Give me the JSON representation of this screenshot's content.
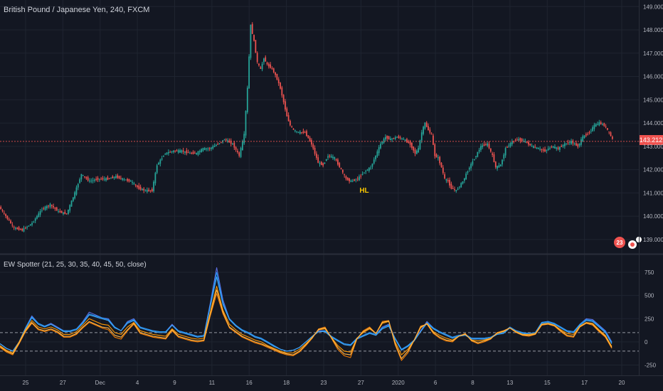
{
  "chart_title": "British Pound / Japanese Yen, 240, FXCM",
  "indicator_title": "EW Spotter (21, 25, 30, 35, 40, 45, 50, close)",
  "last_price_label": "143.212",
  "pattern_label": "HL",
  "event_badge": "23",
  "colors": {
    "background": "#131722",
    "grid": "#1f2430",
    "up_candle": "#26a69a",
    "down_candle": "#ef5350",
    "price_line": "#ef5350",
    "axis_text": "#b2b5be",
    "title_text": "#d1d4dc",
    "pattern_label": "#f7c600",
    "osc_blue_1": "#5b6ee1",
    "osc_blue_2": "#2196f3",
    "osc_blue_3": "#42a5f5",
    "osc_orange_1": "#ff9800",
    "osc_orange_2": "#f57c00",
    "osc_orange_3": "#ffb74d",
    "ref_lines": "#9598a1"
  },
  "chart_data": [
    {
      "type": "candlestick",
      "title": "British Pound / Japanese Yen, 240, FXCM",
      "x_tick_labels": [
        "25",
        "27",
        "Dec",
        "4",
        "9",
        "11",
        "16",
        "18",
        "23",
        "27",
        "2020",
        "6",
        "8",
        "13",
        "15",
        "17",
        "20"
      ],
      "y_tick_labels": [
        "139.000",
        "140.000",
        "141.000",
        "142.000",
        "143.000",
        "144.000",
        "145.000",
        "146.000",
        "147.000",
        "148.000",
        "149.000"
      ],
      "ylim": [
        138.6,
        149.1
      ],
      "last_price": 143.212,
      "annotations": [
        "HL"
      ],
      "grid": true,
      "path_points": [
        [
          0,
          140.4
        ],
        [
          4,
          140.0
        ],
        [
          9,
          139.5
        ],
        [
          14,
          139.4
        ],
        [
          20,
          139.7
        ],
        [
          26,
          140.3
        ],
        [
          31,
          140.5
        ],
        [
          36,
          140.2
        ],
        [
          41,
          140.1
        ],
        [
          46,
          141.0
        ],
        [
          50,
          141.8
        ],
        [
          55,
          141.5
        ],
        [
          60,
          141.6
        ],
        [
          66,
          141.6
        ],
        [
          71,
          141.7
        ],
        [
          75,
          141.6
        ],
        [
          80,
          141.5
        ],
        [
          85,
          141.2
        ],
        [
          89,
          141.1
        ],
        [
          93,
          141.1
        ],
        [
          96,
          142.2
        ],
        [
          101,
          142.7
        ],
        [
          106,
          142.8
        ],
        [
          111,
          142.8
        ],
        [
          116,
          142.7
        ],
        [
          120,
          142.7
        ],
        [
          124,
          142.9
        ],
        [
          128,
          142.9
        ],
        [
          133,
          143.1
        ],
        [
          137,
          143.3
        ],
        [
          142,
          143.1
        ],
        [
          146,
          142.6
        ],
        [
          149,
          143.5
        ],
        [
          151,
          145.5
        ],
        [
          153,
          148.2
        ],
        [
          155,
          147.5
        ],
        [
          157,
          146.6
        ],
        [
          159,
          146.3
        ],
        [
          161,
          146.8
        ],
        [
          163,
          146.5
        ],
        [
          165,
          146.4
        ],
        [
          167,
          146.2
        ],
        [
          169,
          145.9
        ],
        [
          171,
          145.5
        ],
        [
          173,
          144.9
        ],
        [
          175,
          144.3
        ],
        [
          177,
          143.9
        ],
        [
          179,
          143.7
        ],
        [
          182,
          143.6
        ],
        [
          186,
          143.6
        ],
        [
          190,
          143.1
        ],
        [
          194,
          142.3
        ],
        [
          197,
          142.2
        ],
        [
          200,
          142.6
        ],
        [
          204,
          142.5
        ],
        [
          208,
          142.0
        ],
        [
          211,
          141.6
        ],
        [
          214,
          141.5
        ],
        [
          218,
          141.6
        ],
        [
          222,
          141.9
        ],
        [
          226,
          142.1
        ],
        [
          229,
          142.6
        ],
        [
          232,
          143.1
        ],
        [
          235,
          143.4
        ],
        [
          238,
          143.3
        ],
        [
          242,
          143.4
        ],
        [
          246,
          143.3
        ],
        [
          250,
          143.1
        ],
        [
          253,
          142.7
        ],
        [
          255,
          142.9
        ],
        [
          257,
          143.6
        ],
        [
          259,
          144.0
        ],
        [
          261,
          143.7
        ],
        [
          263,
          143.5
        ],
        [
          265,
          142.6
        ],
        [
          267,
          142.5
        ],
        [
          269,
          142.1
        ],
        [
          271,
          141.6
        ],
        [
          273,
          141.5
        ],
        [
          275,
          141.2
        ],
        [
          278,
          141.1
        ],
        [
          282,
          141.5
        ],
        [
          286,
          142.1
        ],
        [
          290,
          142.6
        ],
        [
          293,
          143.0
        ],
        [
          297,
          143.1
        ],
        [
          300,
          142.6
        ],
        [
          302,
          142.1
        ],
        [
          305,
          142.2
        ],
        [
          308,
          142.9
        ],
        [
          312,
          143.2
        ],
        [
          316,
          143.3
        ],
        [
          320,
          143.2
        ],
        [
          324,
          143.0
        ],
        [
          328,
          142.9
        ],
        [
          332,
          142.8
        ],
        [
          336,
          143.0
        ],
        [
          340,
          142.9
        ],
        [
          344,
          143.1
        ],
        [
          348,
          143.2
        ],
        [
          352,
          143.0
        ],
        [
          355,
          143.4
        ],
        [
          359,
          143.6
        ],
        [
          362,
          143.9
        ],
        [
          365,
          144.0
        ],
        [
          368,
          143.9
        ],
        [
          371,
          143.6
        ],
        [
          373,
          143.3
        ]
      ]
    },
    {
      "type": "line",
      "title": "EW Spotter (21, 25, 30, 35, 40, 45, 50, close)",
      "y_tick_labels": [
        "-250",
        "0",
        "250",
        "500",
        "750"
      ],
      "ylim": [
        -300,
        850
      ],
      "reference_lines": [
        100,
        -100
      ],
      "series": [
        {
          "color": "#5b6ee1",
          "values": [
            -20,
            -70,
            -100,
            0,
            150,
            280,
            200,
            170,
            200,
            160,
            120,
            120,
            140,
            220,
            320,
            290,
            260,
            250,
            160,
            120,
            220,
            250,
            160,
            140,
            120,
            110,
            110,
            190,
            120,
            100,
            80,
            60,
            70,
            420,
            800,
            450,
            250,
            180,
            130,
            100,
            60,
            40,
            0,
            -40,
            -80,
            -100,
            -90,
            -60,
            0,
            60,
            120,
            120,
            60,
            20,
            -20,
            -30,
            40,
            70,
            100,
            80,
            160,
            190,
            40,
            -80,
            -40,
            20,
            120,
            220,
            150,
            110,
            80,
            50,
            70,
            80,
            40,
            40,
            40,
            50,
            90,
            100,
            160,
            120,
            100,
            90,
            100,
            210,
            220,
            200,
            160,
            120,
            110,
            190,
            250,
            240,
            180,
            120,
            0
          ]
        },
        {
          "color": "#2196f3",
          "values": [
            -20,
            -70,
            -100,
            0,
            150,
            270,
            200,
            170,
            190,
            150,
            120,
            120,
            140,
            210,
            300,
            280,
            260,
            240,
            160,
            120,
            210,
            240,
            160,
            140,
            120,
            110,
            110,
            180,
            120,
            100,
            80,
            60,
            70,
            400,
            750,
            420,
            250,
            180,
            130,
            100,
            60,
            40,
            0,
            -40,
            -80,
            -100,
            -90,
            -60,
            0,
            60,
            110,
            120,
            60,
            20,
            -20,
            -30,
            40,
            70,
            100,
            80,
            150,
            180,
            40,
            -80,
            -40,
            20,
            110,
            210,
            150,
            110,
            80,
            50,
            70,
            80,
            40,
            40,
            40,
            50,
            90,
            100,
            160,
            120,
            100,
            90,
            100,
            210,
            220,
            200,
            160,
            120,
            110,
            190,
            240,
            230,
            170,
            110,
            -10
          ]
        },
        {
          "color": "#42a5f5",
          "values": [
            -20,
            -70,
            -100,
            0,
            140,
            260,
            190,
            160,
            190,
            150,
            110,
            110,
            130,
            200,
            290,
            270,
            250,
            230,
            150,
            120,
            200,
            230,
            150,
            130,
            110,
            100,
            100,
            180,
            110,
            90,
            70,
            50,
            60,
            380,
            700,
            400,
            240,
            170,
            120,
            90,
            50,
            30,
            -10,
            -50,
            -80,
            -100,
            -90,
            -60,
            0,
            60,
            110,
            110,
            50,
            10,
            -30,
            -40,
            30,
            60,
            90,
            70,
            140,
            170,
            30,
            -90,
            -50,
            10,
            110,
            200,
            140,
            100,
            70,
            40,
            60,
            70,
            30,
            30,
            30,
            40,
            80,
            90,
            150,
            110,
            90,
            80,
            90,
            200,
            210,
            190,
            150,
            110,
            100,
            180,
            230,
            220,
            160,
            100,
            -20
          ]
        },
        {
          "color": "#ff9800",
          "values": [
            -40,
            -90,
            -120,
            0,
            130,
            230,
            160,
            140,
            160,
            130,
            80,
            80,
            110,
            180,
            250,
            220,
            190,
            180,
            100,
            80,
            160,
            210,
            120,
            100,
            80,
            70,
            60,
            140,
            80,
            60,
            40,
            30,
            40,
            320,
            600,
            340,
            190,
            130,
            80,
            50,
            20,
            0,
            -40,
            -70,
            -100,
            -120,
            -120,
            -80,
            -20,
            50,
            130,
            140,
            50,
            -40,
            -100,
            -110,
            40,
            100,
            140,
            90,
            200,
            220,
            0,
            -140,
            -80,
            20,
            150,
            200,
            110,
            70,
            40,
            20,
            60,
            80,
            20,
            10,
            20,
            40,
            90,
            110,
            150,
            110,
            80,
            80,
            90,
            190,
            200,
            180,
            130,
            90,
            80,
            170,
            210,
            200,
            130,
            70,
            -50
          ]
        },
        {
          "color": "#f57c00",
          "values": [
            -60,
            -110,
            -140,
            -20,
            110,
            200,
            130,
            110,
            130,
            100,
            50,
            50,
            80,
            150,
            210,
            180,
            150,
            130,
            50,
            30,
            120,
            190,
            90,
            70,
            50,
            40,
            30,
            120,
            50,
            30,
            10,
            0,
            10,
            280,
            520,
            300,
            150,
            100,
            50,
            20,
            -10,
            -30,
            -60,
            -90,
            -120,
            -140,
            -150,
            -110,
            -40,
            40,
            140,
            160,
            40,
            -80,
            -150,
            -170,
            30,
            120,
            160,
            90,
            220,
            230,
            -30,
            -200,
            -120,
            20,
            170,
            190,
            90,
            40,
            10,
            0,
            60,
            90,
            10,
            -20,
            0,
            30,
            100,
            120,
            150,
            100,
            70,
            60,
            80,
            180,
            190,
            170,
            110,
            60,
            50,
            160,
            200,
            180,
            110,
            50,
            -70
          ]
        },
        {
          "color": "#ffb74d",
          "values": [
            -50,
            -100,
            -130,
            -10,
            120,
            210,
            140,
            120,
            140,
            110,
            60,
            60,
            90,
            160,
            220,
            190,
            160,
            150,
            70,
            50,
            130,
            200,
            100,
            80,
            60,
            50,
            40,
            130,
            60,
            40,
            20,
            10,
            20,
            300,
            560,
            320,
            160,
            110,
            60,
            30,
            0,
            -20,
            -50,
            -80,
            -110,
            -130,
            -140,
            -100,
            -30,
            45,
            135,
            150,
            45,
            -60,
            -130,
            -140,
            35,
            110,
            150,
            90,
            210,
            225,
            -20,
            -180,
            -100,
            20,
            160,
            195,
            100,
            50,
            20,
            10,
            60,
            85,
            15,
            -10,
            10,
            35,
            95,
            115,
            150,
            105,
            75,
            70,
            85,
            185,
            195,
            175,
            120,
            70,
            60,
            165,
            205,
            190,
            120,
            60,
            -60
          ]
        }
      ]
    }
  ]
}
